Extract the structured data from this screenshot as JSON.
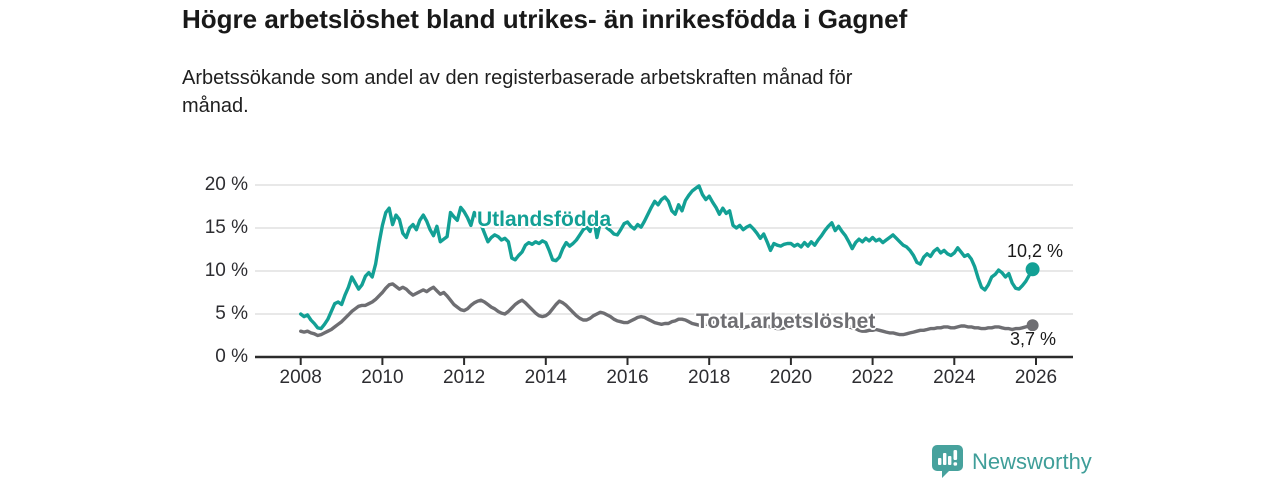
{
  "header": {
    "title": "Högre arbetslöshet bland utrikes- än inrikesfödda i Gagnef",
    "subtitle_line1": "Arbetssökande som andel av den registerbaserade arbetskraften månad för",
    "subtitle_line2": "månad."
  },
  "chart_data": {
    "type": "line",
    "title": "Högre arbetslöshet bland utrikes- än inrikesfödda i Gagnef",
    "frequency": "monthly",
    "x_start": "2008-01",
    "x_end": "2025-12",
    "ylim": [
      0,
      20
    ],
    "grid": true,
    "y_ticks": [
      20,
      15,
      10,
      5,
      0
    ],
    "y_tick_labels": [
      "20 %",
      "15 %",
      "10 %",
      "5 %",
      "0 %"
    ],
    "x_tick_years": [
      2008,
      2010,
      2012,
      2014,
      2016,
      2018,
      2020,
      2022,
      2024,
      2026
    ],
    "x_tick_labels": [
      "2008",
      "2010",
      "2012",
      "2014",
      "2016",
      "2018",
      "2020",
      "2022",
      "2024",
      "2026"
    ],
    "colors": {
      "axis": "#2b2b2b",
      "grid": "#d9d9d9",
      "text": "#2d2d31"
    },
    "series": [
      {
        "name": "Utlandsfödda",
        "color": "#13a095",
        "end_label": "10,2 %",
        "end_value": 10.2,
        "values": [
          5.0,
          4.7,
          4.9,
          4.3,
          3.9,
          3.4,
          3.3,
          3.8,
          4.4,
          5.3,
          6.2,
          6.4,
          6.1,
          7.2,
          8.1,
          9.3,
          8.6,
          7.9,
          8.4,
          9.4,
          9.8,
          9.3,
          10.8,
          13.2,
          15.3,
          16.8,
          17.3,
          15.4,
          16.5,
          16.0,
          14.4,
          13.9,
          15.0,
          15.4,
          14.8,
          15.9,
          16.5,
          15.8,
          14.8,
          14.1,
          15.2,
          13.4,
          13.7,
          14.0,
          16.8,
          16.3,
          15.9,
          17.4,
          16.9,
          16.2,
          15.3,
          16.8,
          16.2,
          15.4,
          14.4,
          13.4,
          13.9,
          14.2,
          14.0,
          13.6,
          13.8,
          13.4,
          11.5,
          11.3,
          11.8,
          12.2,
          13.0,
          13.3,
          13.1,
          13.4,
          13.2,
          13.5,
          13.3,
          12.4,
          11.3,
          11.2,
          11.6,
          12.6,
          13.3,
          12.9,
          13.2,
          13.6,
          14.2,
          14.8,
          15.1,
          14.6,
          16.2,
          13.9,
          15.6,
          15.4,
          15.0,
          14.7,
          14.3,
          14.2,
          14.8,
          15.5,
          15.7,
          15.2,
          14.9,
          15.4,
          15.1,
          15.8,
          16.6,
          17.4,
          18.1,
          17.7,
          18.3,
          18.6,
          18.1,
          17.0,
          16.6,
          17.7,
          17.0,
          18.2,
          18.8,
          19.3,
          19.6,
          19.9,
          18.9,
          18.3,
          18.7,
          18.0,
          17.4,
          16.6,
          17.3,
          16.7,
          17.0,
          15.3,
          15.0,
          15.3,
          14.8,
          15.1,
          15.3,
          14.9,
          14.4,
          13.8,
          14.3,
          13.4,
          12.4,
          13.2,
          13.0,
          12.9,
          13.1,
          13.2,
          13.2,
          12.9,
          13.1,
          12.8,
          13.3,
          12.9,
          13.4,
          13.0,
          13.6,
          14.1,
          14.7,
          15.2,
          15.6,
          14.7,
          15.2,
          14.6,
          14.1,
          13.4,
          12.6,
          13.3,
          13.7,
          13.4,
          13.8,
          13.5,
          13.9,
          13.5,
          13.7,
          13.3,
          13.6,
          13.9,
          14.2,
          13.8,
          13.4,
          13.0,
          12.8,
          12.4,
          11.8,
          11.0,
          10.8,
          11.6,
          12.0,
          11.7,
          12.3,
          12.6,
          12.1,
          12.4,
          12.0,
          11.8,
          12.1,
          12.7,
          12.2,
          11.7,
          11.9,
          11.4,
          10.5,
          9.2,
          8.1,
          7.8,
          8.4,
          9.3,
          9.6,
          10.1,
          9.8,
          9.3,
          9.7,
          8.6,
          8.0,
          7.9,
          8.3,
          8.8,
          9.5,
          10.2
        ]
      },
      {
        "name": "Total arbetslöshet",
        "color": "#6e6e72",
        "end_label": "3,7 %",
        "end_value": 3.7,
        "values": [
          3.0,
          2.9,
          3.0,
          2.8,
          2.7,
          2.5,
          2.6,
          2.8,
          3.0,
          3.2,
          3.5,
          3.8,
          4.1,
          4.5,
          4.9,
          5.3,
          5.6,
          5.9,
          6.0,
          6.0,
          6.2,
          6.4,
          6.7,
          7.1,
          7.5,
          8.0,
          8.4,
          8.5,
          8.2,
          7.9,
          8.1,
          7.9,
          7.5,
          7.2,
          7.4,
          7.6,
          7.8,
          7.6,
          7.9,
          8.1,
          7.7,
          7.3,
          7.5,
          7.1,
          6.6,
          6.1,
          5.8,
          5.5,
          5.4,
          5.6,
          6.0,
          6.3,
          6.5,
          6.6,
          6.4,
          6.1,
          5.8,
          5.6,
          5.3,
          5.1,
          5.0,
          5.3,
          5.7,
          6.1,
          6.4,
          6.6,
          6.3,
          5.9,
          5.5,
          5.1,
          4.8,
          4.7,
          4.8,
          5.1,
          5.6,
          6.1,
          6.5,
          6.3,
          6.0,
          5.6,
          5.2,
          4.8,
          4.5,
          4.3,
          4.3,
          4.5,
          4.8,
          5.0,
          5.2,
          5.1,
          4.9,
          4.7,
          4.4,
          4.2,
          4.1,
          4.0,
          4.0,
          4.2,
          4.4,
          4.6,
          4.7,
          4.6,
          4.4,
          4.2,
          4.0,
          3.9,
          3.8,
          3.9,
          3.9,
          4.1,
          4.2,
          4.4,
          4.4,
          4.3,
          4.1,
          3.9,
          3.8,
          3.7,
          3.7,
          3.8,
          3.9,
          4.0,
          4.1,
          4.1,
          4.0,
          3.9,
          3.8,
          3.6,
          3.5,
          3.4,
          3.4,
          3.5,
          3.6,
          3.7,
          3.8,
          3.8,
          3.7,
          3.6,
          3.5,
          3.4,
          3.3,
          3.3,
          3.4,
          3.5,
          3.6,
          3.7,
          3.9,
          4.2,
          4.4,
          4.4,
          4.3,
          4.1,
          4.0,
          3.8,
          3.8,
          3.9,
          4.0,
          4.0,
          3.9,
          3.8,
          3.6,
          3.5,
          3.4,
          3.3,
          3.1,
          3.0,
          3.0,
          3.1,
          3.1,
          3.2,
          3.1,
          3.0,
          2.9,
          2.8,
          2.8,
          2.7,
          2.6,
          2.6,
          2.7,
          2.8,
          2.9,
          3.0,
          3.1,
          3.1,
          3.2,
          3.3,
          3.3,
          3.4,
          3.4,
          3.5,
          3.5,
          3.4,
          3.4,
          3.5,
          3.6,
          3.6,
          3.5,
          3.5,
          3.4,
          3.4,
          3.3,
          3.3,
          3.4,
          3.4,
          3.5,
          3.5,
          3.4,
          3.3,
          3.3,
          3.2,
          3.3,
          3.3,
          3.4,
          3.5,
          3.6,
          3.7
        ]
      }
    ]
  },
  "footer": {
    "brand": "Newsworthy",
    "brand_color": "#3f9e99",
    "logo_icon": "speech-bubble-bar-chart"
  }
}
